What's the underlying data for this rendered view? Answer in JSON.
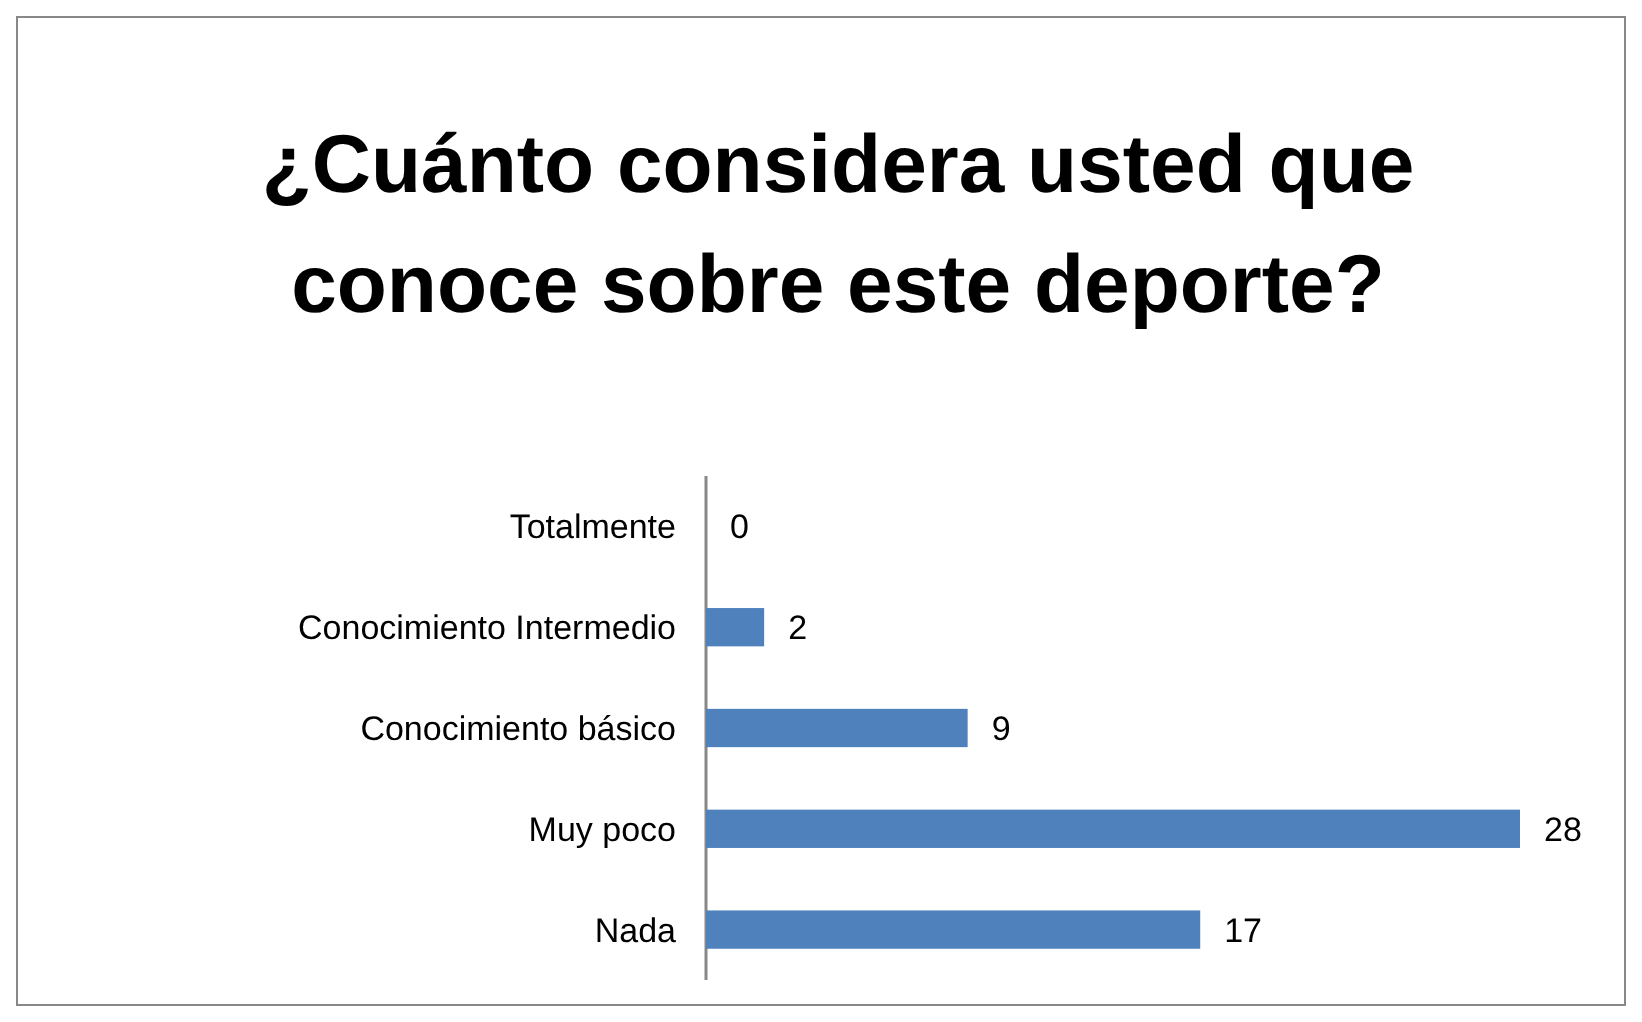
{
  "chart_data": {
    "type": "bar",
    "title": "¿Cuánto considera usted que conoce sobre este deporte?",
    "orientation": "horizontal",
    "categories": [
      "Totalmente",
      "Conocimiento Intermedio",
      "Conocimiento básico",
      "Muy poco",
      "Nada"
    ],
    "values": [
      0,
      2,
      9,
      28,
      17
    ],
    "color": "#4f81bd",
    "data_labels": true
  }
}
